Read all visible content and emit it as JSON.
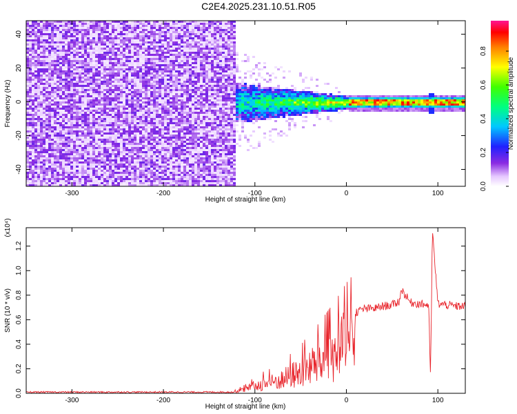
{
  "title": "C2E4.2025.231.10.51.R05",
  "chart_data": [
    {
      "type": "heatmap",
      "xlabel": "Height of straight line (km)",
      "ylabel": "Frequency (Hz)",
      "xlim": [
        -350,
        130
      ],
      "ylim": [
        -50,
        48
      ],
      "xticks": [
        -300,
        -200,
        -100,
        0,
        100
      ],
      "yticks": [
        -40,
        -20,
        0,
        20,
        40
      ],
      "colorbar": {
        "label": "Normalized spectral amplitude",
        "range": [
          0,
          0.98
        ],
        "ticks": [
          "0.0",
          "0.2",
          "0.4",
          "0.6",
          "0.8"
        ],
        "colormap": "rainbow (magenta-white to red)"
      },
      "regions": [
        {
          "x_range": [
            -350,
            -120
          ],
          "freq_range": [
            -50,
            48
          ],
          "amplitude": "low (0.0-0.1), broadband noise"
        },
        {
          "x_range": [
            -120,
            0
          ],
          "freq_range": [
            -15,
            15
          ],
          "amplitude": "0.1-0.8, narrowing toward 0 Hz"
        },
        {
          "x_range": [
            0,
            130
          ],
          "freq_range": [
            -4,
            4
          ],
          "amplitude": "0.6-0.98, concentrated at 0 Hz"
        }
      ]
    },
    {
      "type": "line",
      "xlabel": "Height of straight line (km)",
      "ylabel": "SNR (10 * v/v)",
      "y_multiplier": "(x10⁴)",
      "xlim": [
        -350,
        130
      ],
      "ylim": [
        0,
        1.35
      ],
      "xticks": [
        -300,
        -200,
        -100,
        0,
        100
      ],
      "yticks": [
        "0.0",
        "0.2",
        "0.4",
        "0.6",
        "0.8",
        "1.0",
        "1.2"
      ],
      "series_color": "#e8232a",
      "x": [
        -350,
        -300,
        -250,
        -200,
        -150,
        -125,
        -110,
        -100,
        -90,
        -80,
        -70,
        -60,
        -50,
        -40,
        -30,
        -20,
        -10,
        0,
        10,
        20,
        30,
        40,
        50,
        58,
        60,
        70,
        80,
        90,
        92,
        94,
        100,
        110,
        120,
        130
      ],
      "y": [
        0.01,
        0.01,
        0.01,
        0.01,
        0.01,
        0.01,
        0.05,
        0.09,
        0.12,
        0.14,
        0.17,
        0.22,
        0.26,
        0.33,
        0.38,
        0.45,
        0.52,
        0.6,
        0.66,
        0.69,
        0.69,
        0.71,
        0.72,
        0.75,
        0.85,
        0.74,
        0.73,
        0.72,
        0.1,
        1.33,
        0.73,
        0.72,
        0.71,
        0.71
      ]
    }
  ]
}
